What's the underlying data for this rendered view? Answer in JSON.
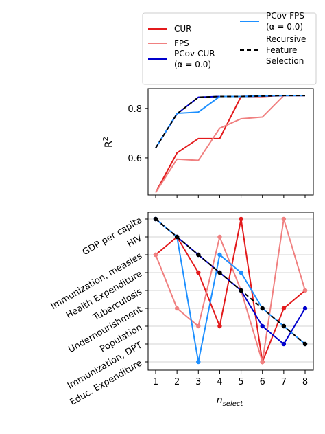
{
  "colors": {
    "CUR": "#e31a1c",
    "FPS": "#f08080",
    "PCovCUR": "#0000cc",
    "PCovFPS": "#1e90ff",
    "RFS": "#000000",
    "grid": "#d3d3d3"
  },
  "legend": {
    "entries": [
      {
        "key": "CUR",
        "lines": [
          "CUR"
        ]
      },
      {
        "key": "FPS",
        "lines": [
          "FPS"
        ]
      },
      {
        "key": "PCovCUR",
        "lines": [
          "PCov-CUR",
          "(α = 0.0)"
        ]
      },
      {
        "key": "PCovFPS",
        "lines": [
          "PCov-FPS",
          "(α = 0.0)"
        ]
      },
      {
        "key": "RFS",
        "lines": [
          "Recursive",
          "Feature",
          "Selection"
        ]
      }
    ]
  },
  "chart_data": [
    {
      "type": "line",
      "ylabel": "R²",
      "ylim": [
        0.45,
        0.88
      ],
      "yticks": [
        "0.6",
        "0.8"
      ],
      "x": [
        1,
        2,
        3,
        4,
        5,
        6,
        7,
        8
      ],
      "series": [
        {
          "name": "CUR",
          "values": [
            0.46,
            0.62,
            0.678,
            0.678,
            0.848,
            0.848,
            0.852,
            0.852
          ]
        },
        {
          "name": "FPS",
          "values": [
            0.46,
            0.595,
            0.59,
            0.72,
            0.758,
            0.765,
            0.852,
            0.852
          ]
        },
        {
          "name": "PCov-CUR",
          "values": [
            0.64,
            0.778,
            0.845,
            0.848,
            0.848,
            0.85,
            0.852,
            0.852
          ]
        },
        {
          "name": "PCov-FPS",
          "values": [
            0.64,
            0.78,
            0.785,
            0.848,
            0.848,
            0.85,
            0.852,
            0.852
          ]
        },
        {
          "name": "Recursive Feature Selection",
          "values": [
            0.64,
            0.778,
            0.845,
            0.848,
            0.848,
            0.85,
            0.852,
            0.852
          ]
        }
      ]
    },
    {
      "type": "line",
      "xlabel": "n_select",
      "x": [
        1,
        2,
        3,
        4,
        5,
        6,
        7,
        8
      ],
      "xticks": [
        "1",
        "2",
        "3",
        "4",
        "5",
        "6",
        "7",
        "8"
      ],
      "categories": [
        "GDP per capita",
        "HIV",
        "Immunization, measles",
        "Health Expenditure",
        "Tuberculosis",
        "Undernourishment",
        "Population",
        "Immunization, DPT",
        "Educ. Expenditure"
      ],
      "series": [
        {
          "name": "CUR",
          "values": [
            3,
            2,
            4,
            7,
            1,
            9,
            6,
            5
          ]
        },
        {
          "name": "FPS",
          "values": [
            3,
            6,
            7,
            2,
            5,
            9,
            1,
            5
          ]
        },
        {
          "name": "PCov-CUR",
          "values": [
            1,
            2,
            3,
            4,
            5,
            7,
            8,
            6
          ]
        },
        {
          "name": "PCov-FPS",
          "values": [
            1,
            2,
            9,
            3,
            4,
            6,
            7,
            8
          ]
        },
        {
          "name": "Recursive Feature Selection",
          "values": [
            1,
            2,
            3,
            4,
            5,
            6,
            7,
            8
          ]
        }
      ]
    }
  ],
  "axis_labels": {
    "top_y_main": "R",
    "top_y_sup": "2",
    "bottom_x_main": "n",
    "bottom_x_sub": "select"
  }
}
